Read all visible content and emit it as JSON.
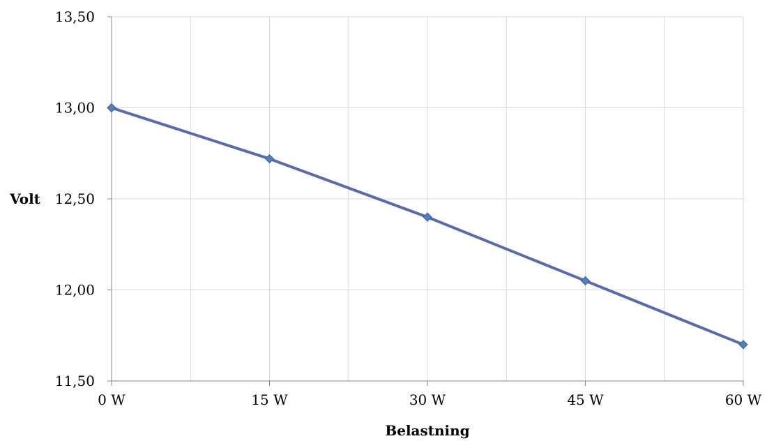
{
  "chart_data": {
    "type": "line",
    "title": "",
    "xlabel": "Belastning",
    "ylabel": "Volt",
    "categories": [
      "0 W",
      "15 W",
      "30 W",
      "45 W",
      "60 W"
    ],
    "series": [
      {
        "values": [
          13.0,
          12.72,
          12.4,
          12.05,
          11.7
        ]
      }
    ],
    "ylim": [
      11.5,
      13.5
    ],
    "yticks": [
      "11,50",
      "12,00",
      "12,50",
      "13,00",
      "13,50"
    ],
    "grid": true,
    "legend": "none",
    "colors": {
      "line": "#5b6aa8",
      "marker": "#4f81bd",
      "marker_stroke": "#3a5f99",
      "grid": "#d9d9d9",
      "axis": "#868686"
    }
  }
}
